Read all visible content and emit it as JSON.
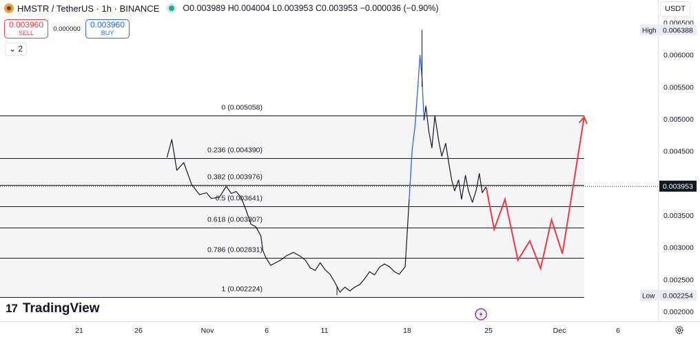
{
  "header": {
    "symbol_title": "HMSTR / TetherUS · 1h · BINANCE",
    "ohlc": "O0.003989 H0.004004 L0.003953 C0.003953 −0.000036 (−0.90%)"
  },
  "trade": {
    "sell_price": "0.003960",
    "sell_label": "SELL",
    "spread": "0.000000",
    "buy_price": "0.003960",
    "buy_label": "BUY"
  },
  "indicator_toggle": "2",
  "currency_button": "USDT",
  "branding": "TradingView",
  "icons": [
    "hmstr-logo-icon",
    "live-status-icon",
    "chevron-down-icon",
    "tradingview-logo-icon",
    "lightning-icon",
    "settings-icon"
  ],
  "colors": {
    "price_line": "#131722",
    "rally_line": "#2962ff",
    "projection": "#f23645",
    "fib_line": "#131722",
    "fib_fill": "#f5f5f5"
  },
  "chart_data": {
    "type": "line",
    "title": "HMSTR / TetherUS · 1h · BINANCE",
    "y_scale": "linear",
    "ylim": [
      0.00198,
      0.0065
    ],
    "grid": false,
    "y_ticks": [
      "0.006500",
      "0.006000",
      "0.005500",
      "0.005000",
      "0.004500",
      "0.003500",
      "0.003000",
      "0.002500",
      "0.002000"
    ],
    "x_ticks": [
      "21",
      "26",
      "Nov",
      "6",
      "11",
      "18",
      "25",
      "Dec",
      "6"
    ],
    "last_price": "0.003953",
    "high_label": "High",
    "high_value": "0.006388",
    "low_label": "Low",
    "low_value": "0.002254",
    "fibonacci": [
      {
        "level": "0",
        "price": 0.005058,
        "label": "0 (0.005058)"
      },
      {
        "level": "0.236",
        "price": 0.00439,
        "label": "0.236 (0.004390)"
      },
      {
        "level": "0.382",
        "price": 0.003976,
        "label": "0.382 (0.003976)"
      },
      {
        "level": "0.5",
        "price": 0.003641,
        "label": "0.5 (0.003641)"
      },
      {
        "level": "0.618",
        "price": 0.003307,
        "label": "0.618 (0.003307)"
      },
      {
        "level": "0.786",
        "price": 0.002831,
        "label": "0.786 (0.002831)"
      },
      {
        "level": "1",
        "price": 0.002224,
        "label": "1 (0.002224)"
      }
    ],
    "price_series": [
      {
        "d": 16.5,
        "v": 0.0044
      },
      {
        "d": 17.0,
        "v": 0.00468
      },
      {
        "d": 17.5,
        "v": 0.0042
      },
      {
        "d": 18.2,
        "v": 0.00432
      },
      {
        "d": 19.0,
        "v": 0.00398
      },
      {
        "d": 19.8,
        "v": 0.00382
      },
      {
        "d": 20.5,
        "v": 0.00385
      },
      {
        "d": 21.0,
        "v": 0.00376
      },
      {
        "d": 21.8,
        "v": 0.00378
      },
      {
        "d": 22.5,
        "v": 0.00395
      },
      {
        "d": 23.0,
        "v": 0.00384
      },
      {
        "d": 23.5,
        "v": 0.00387
      },
      {
        "d": 24.0,
        "v": 0.00378
      },
      {
        "d": 24.5,
        "v": 0.00358
      },
      {
        "d": 25.0,
        "v": 0.00336
      },
      {
        "d": 25.5,
        "v": 0.00332
      },
      {
        "d": 26.0,
        "v": 0.00318
      },
      {
        "d": 26.2,
        "v": 0.00295
      },
      {
        "d": 26.5,
        "v": 0.00284
      },
      {
        "d": 27.0,
        "v": 0.00272
      },
      {
        "d": 27.5,
        "v": 0.00276
      },
      {
        "d": 28.0,
        "v": 0.0028
      },
      {
        "d": 28.6,
        "v": 0.00287
      },
      {
        "d": 29.3,
        "v": 0.00292
      },
      {
        "d": 30.0,
        "v": 0.00286
      },
      {
        "d": 30.5,
        "v": 0.0028
      },
      {
        "d": 31.0,
        "v": 0.00268
      },
      {
        "d": 31.5,
        "v": 0.00264
      },
      {
        "d": 32.0,
        "v": 0.00276
      },
      {
        "d": 32.5,
        "v": 0.00265
      },
      {
        "d": 33.0,
        "v": 0.00258
      },
      {
        "d": 33.5,
        "v": 0.00245
      },
      {
        "d": 34.0,
        "v": 0.0023
      },
      {
        "d": 34.5,
        "v": 0.00238
      },
      {
        "d": 35.0,
        "v": 0.00232
      },
      {
        "d": 35.5,
        "v": 0.00238
      },
      {
        "d": 36.0,
        "v": 0.00242
      },
      {
        "d": 36.5,
        "v": 0.00251
      },
      {
        "d": 37.0,
        "v": 0.00262
      },
      {
        "d": 37.5,
        "v": 0.00257
      },
      {
        "d": 38.0,
        "v": 0.00269
      },
      {
        "d": 38.5,
        "v": 0.00274
      },
      {
        "d": 39.0,
        "v": 0.0027
      },
      {
        "d": 39.5,
        "v": 0.00262
      },
      {
        "d": 40.0,
        "v": 0.00258
      },
      {
        "d": 40.6,
        "v": 0.0027
      },
      {
        "d": 41.0,
        "v": 0.00375
      },
      {
        "d": 41.3,
        "v": 0.00452
      },
      {
        "d": 41.6,
        "v": 0.0049
      },
      {
        "d": 41.9,
        "v": 0.00555
      },
      {
        "d": 42.1,
        "v": 0.006
      },
      {
        "d": 42.3,
        "v": 0.00565
      },
      {
        "d": 42.5,
        "v": 0.00498
      },
      {
        "d": 42.7,
        "v": 0.0052
      },
      {
        "d": 43.0,
        "v": 0.0048
      },
      {
        "d": 43.3,
        "v": 0.00455
      },
      {
        "d": 43.6,
        "v": 0.00505
      },
      {
        "d": 44.0,
        "v": 0.00465
      },
      {
        "d": 44.3,
        "v": 0.00442
      },
      {
        "d": 44.7,
        "v": 0.00462
      },
      {
        "d": 45.0,
        "v": 0.00432
      },
      {
        "d": 45.3,
        "v": 0.00405
      },
      {
        "d": 45.6,
        "v": 0.00388
      },
      {
        "d": 46.0,
        "v": 0.00405
      },
      {
        "d": 46.3,
        "v": 0.00375
      },
      {
        "d": 46.7,
        "v": 0.00412
      },
      {
        "d": 47.0,
        "v": 0.00388
      },
      {
        "d": 47.4,
        "v": 0.0037
      },
      {
        "d": 47.8,
        "v": 0.0039
      },
      {
        "d": 48.1,
        "v": 0.00415
      },
      {
        "d": 48.4,
        "v": 0.00385
      },
      {
        "d": 48.8,
        "v": 0.00395
      }
    ],
    "rally_start_index": 46,
    "projection": [
      {
        "d": 48.8,
        "v": 0.00393
      },
      {
        "d": 49.6,
        "v": 0.00328
      },
      {
        "d": 50.7,
        "v": 0.00375
      },
      {
        "d": 52.0,
        "v": 0.0028
      },
      {
        "d": 53.2,
        "v": 0.0031
      },
      {
        "d": 54.3,
        "v": 0.00267
      },
      {
        "d": 55.4,
        "v": 0.00343
      },
      {
        "d": 56.5,
        "v": 0.0029
      },
      {
        "d": 58.7,
        "v": 0.00503
      }
    ],
    "fib_range_x": [
      0.0,
      58.7
    ],
    "event_marker_day": 48.3
  }
}
